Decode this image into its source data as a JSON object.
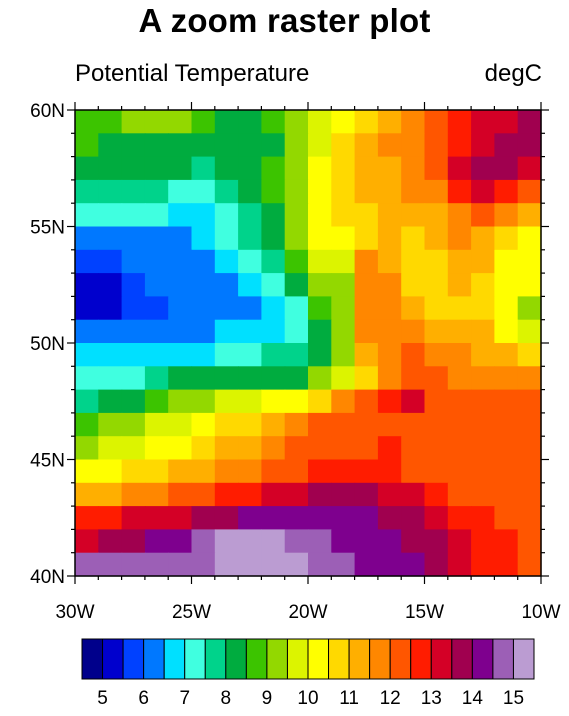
{
  "chart_data": {
    "type": "heatmap",
    "title": "A zoom raster plot",
    "left_string": "Potential Temperature",
    "right_string": "degC",
    "xlim": [
      -30,
      -10
    ],
    "ylim": [
      40,
      60
    ],
    "x_ticks": [
      {
        "value": -30,
        "label": "30W"
      },
      {
        "value": -25,
        "label": "25W"
      },
      {
        "value": -20,
        "label": "20W"
      },
      {
        "value": -15,
        "label": "15W"
      },
      {
        "value": -10,
        "label": "10W"
      }
    ],
    "y_ticks": [
      {
        "value": 40,
        "label": "40N"
      },
      {
        "value": 45,
        "label": "45N"
      },
      {
        "value": 50,
        "label": "50N"
      },
      {
        "value": 55,
        "label": "55N"
      },
      {
        "value": 60,
        "label": "60N"
      }
    ],
    "grid_x": [
      -30,
      -29,
      -28,
      -27,
      -26,
      -25,
      -24,
      -23,
      -22,
      -21,
      -20,
      -19,
      -18,
      -17,
      -16,
      -15,
      -14,
      -13,
      -12,
      -11,
      -10
    ],
    "grid_y": [
      60,
      59,
      58,
      57,
      56,
      55,
      54,
      53,
      52,
      51,
      50,
      49,
      48,
      47,
      46,
      45,
      44,
      43,
      42,
      41,
      40
    ],
    "values": [
      [
        8.5,
        8.5,
        9.0,
        9.0,
        9.0,
        8.5,
        8.0,
        8.0,
        8.5,
        9.0,
        9.5,
        10.0,
        10.5,
        11.0,
        11.5,
        12.0,
        12.5,
        13.0,
        13.0,
        13.5
      ],
      [
        8.5,
        8.0,
        8.0,
        8.0,
        8.0,
        8.0,
        8.0,
        8.0,
        8.0,
        9.0,
        9.5,
        10.5,
        11.0,
        11.5,
        11.5,
        12.0,
        12.5,
        13.0,
        13.5,
        13.5
      ],
      [
        8.0,
        8.0,
        8.0,
        8.0,
        8.0,
        7.5,
        8.0,
        8.0,
        8.5,
        9.0,
        10.0,
        10.5,
        11.0,
        11.0,
        11.5,
        12.0,
        13.0,
        13.5,
        13.5,
        13.0
      ],
      [
        7.5,
        7.5,
        7.5,
        7.5,
        7.0,
        7.0,
        7.5,
        8.0,
        8.5,
        9.0,
        10.0,
        10.5,
        11.0,
        11.0,
        11.5,
        11.5,
        12.5,
        13.0,
        12.5,
        12.0
      ],
      [
        7.0,
        7.0,
        7.0,
        7.0,
        6.5,
        6.5,
        7.0,
        7.5,
        8.0,
        9.0,
        10.0,
        10.5,
        10.5,
        11.0,
        11.0,
        11.0,
        11.5,
        12.0,
        11.5,
        11.0
      ],
      [
        6.0,
        6.0,
        6.0,
        6.0,
        6.0,
        6.5,
        7.0,
        7.5,
        8.0,
        9.0,
        10.0,
        10.0,
        10.5,
        11.0,
        10.5,
        11.0,
        11.5,
        11.0,
        10.5,
        10.0
      ],
      [
        5.5,
        5.5,
        6.0,
        6.0,
        6.0,
        6.0,
        6.5,
        7.0,
        7.5,
        8.5,
        9.5,
        9.5,
        11.5,
        11.0,
        10.5,
        10.5,
        11.0,
        11.0,
        10.0,
        10.0
      ],
      [
        5.0,
        5.0,
        5.5,
        6.0,
        6.0,
        6.0,
        6.0,
        6.5,
        7.0,
        8.0,
        9.0,
        9.0,
        11.5,
        11.5,
        10.5,
        10.5,
        11.0,
        10.5,
        10.0,
        10.0
      ],
      [
        5.0,
        5.0,
        5.5,
        5.5,
        6.0,
        6.0,
        6.0,
        6.0,
        6.5,
        7.0,
        8.5,
        9.0,
        11.5,
        11.5,
        11.0,
        10.5,
        10.5,
        10.5,
        10.0,
        9.0
      ],
      [
        6.0,
        6.0,
        6.0,
        6.0,
        6.0,
        6.0,
        6.5,
        6.5,
        6.5,
        7.0,
        8.0,
        9.0,
        11.5,
        11.5,
        11.5,
        11.0,
        11.0,
        11.0,
        10.0,
        9.5
      ],
      [
        6.5,
        6.5,
        6.5,
        6.5,
        6.5,
        6.5,
        7.0,
        7.0,
        7.5,
        7.5,
        8.0,
        9.0,
        11.0,
        11.5,
        12.0,
        11.5,
        11.5,
        11.0,
        11.0,
        10.5
      ],
      [
        7.0,
        7.0,
        7.0,
        7.5,
        8.0,
        8.0,
        8.0,
        8.0,
        8.0,
        8.0,
        9.0,
        9.5,
        10.5,
        11.5,
        12.0,
        12.0,
        11.5,
        11.5,
        11.5,
        11.5
      ],
      [
        7.5,
        8.0,
        8.0,
        8.5,
        9.0,
        9.0,
        9.5,
        9.5,
        10.0,
        10.0,
        10.5,
        11.5,
        12.0,
        12.5,
        13.0,
        12.0,
        12.0,
        12.0,
        12.0,
        12.0
      ],
      [
        8.5,
        9.0,
        9.0,
        9.5,
        9.5,
        10.0,
        10.5,
        10.5,
        11.0,
        11.5,
        12.0,
        12.0,
        12.0,
        12.0,
        12.0,
        12.0,
        12.0,
        12.0,
        12.0,
        12.0
      ],
      [
        9.0,
        9.5,
        9.5,
        10.0,
        10.0,
        10.5,
        11.0,
        11.0,
        11.5,
        12.0,
        12.0,
        12.0,
        12.0,
        12.5,
        12.0,
        12.0,
        12.0,
        12.0,
        12.0,
        12.0
      ],
      [
        10.0,
        10.0,
        10.5,
        10.5,
        11.0,
        11.0,
        11.5,
        11.5,
        12.0,
        12.0,
        12.5,
        12.5,
        12.5,
        12.5,
        12.0,
        12.0,
        12.0,
        12.0,
        12.0,
        12.0
      ],
      [
        11.0,
        11.0,
        11.5,
        11.5,
        12.0,
        12.0,
        12.5,
        12.5,
        13.0,
        13.0,
        13.5,
        13.5,
        13.5,
        13.0,
        13.0,
        12.5,
        12.0,
        12.0,
        12.0,
        12.0
      ],
      [
        12.5,
        12.5,
        13.0,
        13.0,
        13.0,
        13.5,
        13.5,
        14.0,
        14.0,
        14.0,
        14.0,
        14.0,
        14.0,
        13.5,
        13.5,
        13.0,
        12.5,
        12.5,
        12.0,
        12.0
      ],
      [
        13.0,
        13.5,
        13.5,
        14.0,
        14.0,
        14.5,
        15.0,
        15.0,
        15.0,
        14.5,
        14.5,
        14.0,
        14.0,
        14.0,
        13.5,
        13.5,
        13.0,
        12.5,
        12.5,
        12.0
      ],
      [
        14.5,
        14.5,
        14.5,
        14.5,
        14.5,
        14.5,
        15.0,
        15.5,
        15.5,
        15.0,
        14.5,
        14.5,
        14.0,
        14.0,
        14.0,
        13.5,
        13.0,
        12.5,
        12.5,
        12.0
      ]
    ],
    "levels": [
      5,
      5.5,
      6,
      6.5,
      7,
      7.5,
      8,
      8.5,
      9,
      9.5,
      10,
      10.5,
      11,
      11.5,
      12,
      12.5,
      13,
      13.5,
      14,
      14.5,
      15
    ],
    "label_levels": [
      "5",
      "6",
      "7",
      "8",
      "9",
      "10",
      "11",
      "12",
      "13",
      "14",
      "15"
    ],
    "colors": [
      "#00008b",
      "#0000cd",
      "#0041ff",
      "#0078ff",
      "#00e0ff",
      "#40ffe0",
      "#00d38b",
      "#00ac3f",
      "#3cc400",
      "#93d800",
      "#dcf400",
      "#ffff00",
      "#ffd900",
      "#ffaf00",
      "#ff8700",
      "#ff5600",
      "#ff1c00",
      "#d40026",
      "#a0004f",
      "#7e008e",
      "#9c5fb6",
      "#bb9cd2"
    ],
    "colorbar": {
      "orientation": "horizontal",
      "placement": "bottom"
    }
  }
}
